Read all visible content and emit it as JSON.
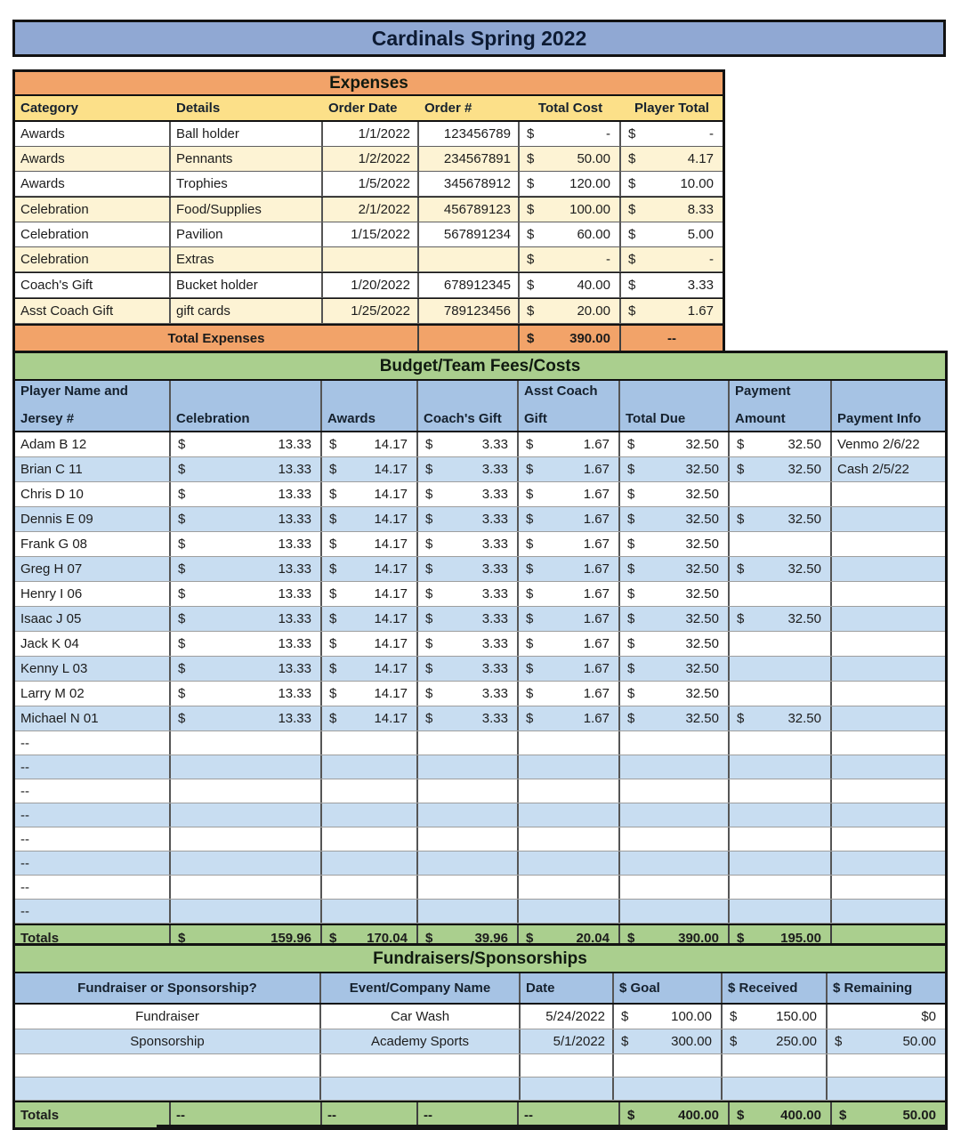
{
  "title": "Cardinals Spring 2022",
  "currency": "$",
  "dash": "--",
  "colors": {
    "title_bar": "#90A8D3",
    "expenses_header": "#F2A369",
    "column_header_yellow": "#FCE089",
    "cream_row": "#FDF3D4",
    "section_green": "#AACF8E",
    "table_header_blue": "#A6C3E4",
    "blue_row": "#C8DDF1"
  },
  "expenses": {
    "section_title": "Expenses",
    "headers": {
      "category": "Category",
      "details": "Details",
      "order_date": "Order Date",
      "order_number": "Order #",
      "total_cost": "Total Cost",
      "player_total": "Player Total"
    },
    "rows": [
      {
        "category": "Awards",
        "details": "Ball holder",
        "order_date": "1/1/2022",
        "order_number": "123456789",
        "total_cost": "-",
        "player_total": "-"
      },
      {
        "category": "Awards",
        "details": "Pennants",
        "order_date": "1/2/2022",
        "order_number": "234567891",
        "total_cost": "50.00",
        "player_total": "4.17"
      },
      {
        "category": "Awards",
        "details": "Trophies",
        "order_date": "1/5/2022",
        "order_number": "345678912",
        "total_cost": "120.00",
        "player_total": "10.00"
      },
      {
        "category": "Celebration",
        "details": "Food/Supplies",
        "order_date": "2/1/2022",
        "order_number": "456789123",
        "total_cost": "100.00",
        "player_total": "8.33"
      },
      {
        "category": "Celebration",
        "details": "Pavilion",
        "order_date": "1/15/2022",
        "order_number": "567891234",
        "total_cost": "60.00",
        "player_total": "5.00"
      },
      {
        "category": "Celebration",
        "details": "Extras",
        "order_date": "",
        "order_number": "",
        "total_cost": "-",
        "player_total": "-"
      },
      {
        "category": "Coach's Gift",
        "details": "Bucket holder",
        "order_date": "1/20/2022",
        "order_number": "678912345",
        "total_cost": "40.00",
        "player_total": "3.33"
      },
      {
        "category": "Asst Coach Gift",
        "details": "gift cards",
        "order_date": "1/25/2022",
        "order_number": "789123456",
        "total_cost": "20.00",
        "player_total": "1.67"
      }
    ],
    "total": {
      "label": "Total Expenses",
      "total_cost": "390.00",
      "player_total": "--"
    }
  },
  "budget": {
    "section_title": "Budget/Team Fees/Costs",
    "headers": {
      "name_line1": "Player Name and",
      "name_line2": "Jersey #",
      "celebration": "Celebration",
      "awards": "Awards",
      "coachs_gift": "Coach's Gift",
      "asst_line1": "Asst Coach",
      "asst_line2": "Gift",
      "total_due": "Total Due",
      "payment_line1": "Payment",
      "payment_line2": "Amount",
      "payment_info": "Payment Info"
    },
    "players": [
      {
        "name": "Adam B 12",
        "celebration": "13.33",
        "awards": "14.17",
        "coachs_gift": "3.33",
        "asst_gift": "1.67",
        "total_due": "32.50",
        "payment_currency": "$",
        "payment_amount": "32.50",
        "payment_info": "Venmo 2/6/22"
      },
      {
        "name": "Brian C  11",
        "celebration": "13.33",
        "awards": "14.17",
        "coachs_gift": "3.33",
        "asst_gift": "1.67",
        "total_due": "32.50",
        "payment_currency": "$",
        "payment_amount": "32.50",
        "payment_info": "Cash 2/5/22"
      },
      {
        "name": "Chris D  10",
        "celebration": "13.33",
        "awards": "14.17",
        "coachs_gift": "3.33",
        "asst_gift": "1.67",
        "total_due": "32.50",
        "payment_currency": "",
        "payment_amount": "",
        "payment_info": ""
      },
      {
        "name": "Dennis E  09",
        "celebration": "13.33",
        "awards": "14.17",
        "coachs_gift": "3.33",
        "asst_gift": "1.67",
        "total_due": "32.50",
        "payment_currency": "$",
        "payment_amount": "32.50",
        "payment_info": ""
      },
      {
        "name": "Frank G  08",
        "celebration": "13.33",
        "awards": "14.17",
        "coachs_gift": "3.33",
        "asst_gift": "1.67",
        "total_due": "32.50",
        "payment_currency": "",
        "payment_amount": "",
        "payment_info": ""
      },
      {
        "name": "Greg H  07",
        "celebration": "13.33",
        "awards": "14.17",
        "coachs_gift": "3.33",
        "asst_gift": "1.67",
        "total_due": "32.50",
        "payment_currency": "$",
        "payment_amount": "32.50",
        "payment_info": ""
      },
      {
        "name": "Henry I  06",
        "celebration": "13.33",
        "awards": "14.17",
        "coachs_gift": "3.33",
        "asst_gift": "1.67",
        "total_due": "32.50",
        "payment_currency": "",
        "payment_amount": "",
        "payment_info": ""
      },
      {
        "name": "Isaac J  05",
        "celebration": "13.33",
        "awards": "14.17",
        "coachs_gift": "3.33",
        "asst_gift": "1.67",
        "total_due": "32.50",
        "payment_currency": "$",
        "payment_amount": "32.50",
        "payment_info": ""
      },
      {
        "name": "Jack K  04",
        "celebration": "13.33",
        "awards": "14.17",
        "coachs_gift": "3.33",
        "asst_gift": "1.67",
        "total_due": "32.50",
        "payment_currency": "",
        "payment_amount": "",
        "payment_info": ""
      },
      {
        "name": "Kenny L  03",
        "celebration": "13.33",
        "awards": "14.17",
        "coachs_gift": "3.33",
        "asst_gift": "1.67",
        "total_due": "32.50",
        "payment_currency": "",
        "payment_amount": "",
        "payment_info": ""
      },
      {
        "name": "Larry M  02",
        "celebration": "13.33",
        "awards": "14.17",
        "coachs_gift": "3.33",
        "asst_gift": "1.67",
        "total_due": "32.50",
        "payment_currency": "",
        "payment_amount": "",
        "payment_info": ""
      },
      {
        "name": "Michael N  01",
        "celebration": "13.33",
        "awards": "14.17",
        "coachs_gift": "3.33",
        "asst_gift": "1.67",
        "total_due": "32.50",
        "payment_currency": "$",
        "payment_amount": "32.50",
        "payment_info": ""
      }
    ],
    "empty_rows": [
      "--",
      "--",
      "--",
      "--",
      "--",
      "--",
      "--",
      "--"
    ],
    "totals": {
      "label": "Totals",
      "celebration": "159.96",
      "awards": "170.04",
      "coachs_gift": "39.96",
      "asst_gift": "20.04",
      "total_due": "390.00",
      "payment_amount": "195.00"
    }
  },
  "fundraisers": {
    "section_title": "Fundraisers/Sponsorships",
    "headers": {
      "type": "Fundraiser or Sponsorship?",
      "event": "Event/Company Name",
      "date": "Date",
      "goal": "$ Goal",
      "received": "$ Received",
      "remaining": "$ Remaining"
    },
    "rows": [
      {
        "type": "Fundraiser",
        "event": "Car Wash",
        "date": "5/24/2022",
        "goal_currency": "$",
        "goal": "100.00",
        "received_currency": "$",
        "received": "150.00",
        "remaining_currency": "",
        "remaining": "$0"
      },
      {
        "type": "Sponsorship",
        "event": "Academy Sports",
        "date": "5/1/2022",
        "goal_currency": "$",
        "goal": "300.00",
        "received_currency": "$",
        "received": "250.00",
        "remaining_currency": "$",
        "remaining": "50.00"
      }
    ],
    "totals": {
      "label": "Totals",
      "goal": "400.00",
      "received": "400.00",
      "remaining": "50.00"
    }
  }
}
